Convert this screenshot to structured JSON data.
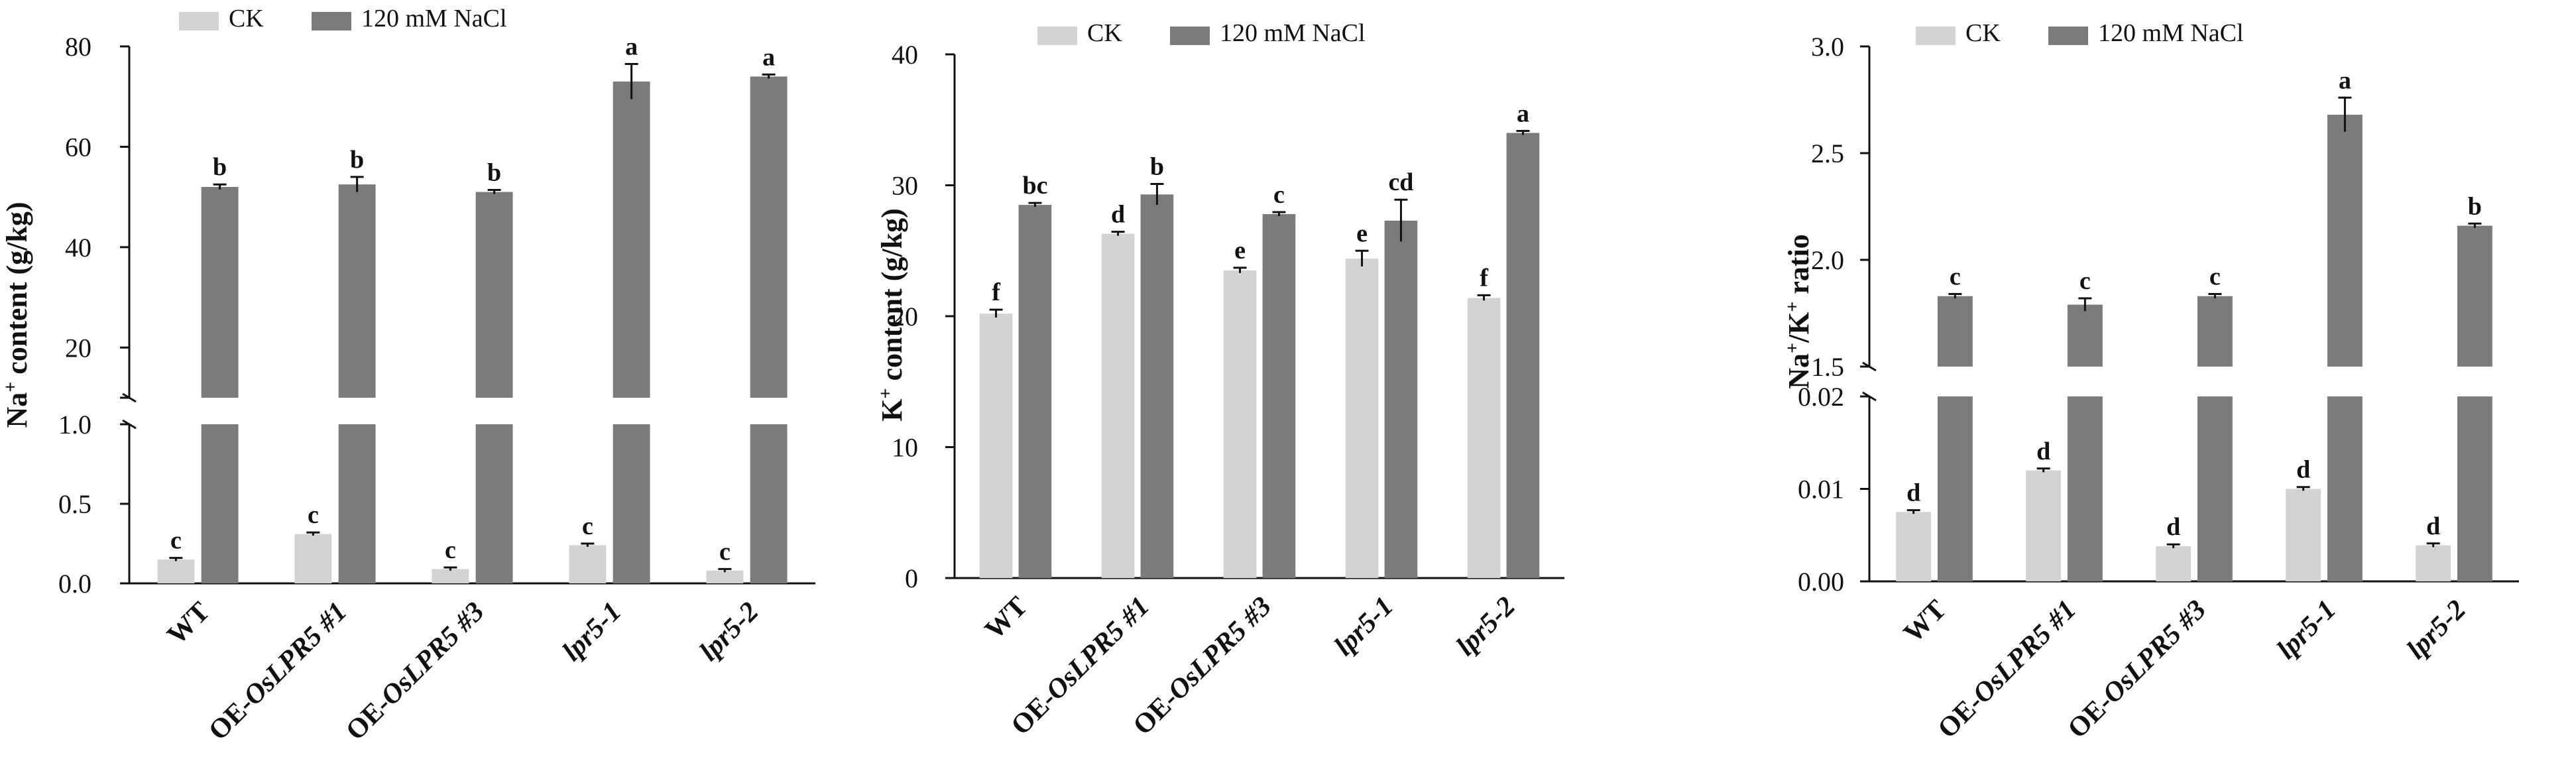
{
  "figure": {
    "categories": [
      {
        "pre": "WT",
        "it": ""
      },
      {
        "pre": "OE-",
        "it": "OsLPR5 #1"
      },
      {
        "pre": "OE-",
        "it": "OsLPR5 #3"
      },
      {
        "pre": "",
        "it": "lpr5-1"
      },
      {
        "pre": "",
        "it": "lpr5-2"
      }
    ],
    "legend": {
      "ck": "CK",
      "nacl": "120 mM NaCl"
    },
    "colors": {
      "ck": "#d3d3d3",
      "nacl": "#7b7b7b",
      "axis": "#111111",
      "text": "#111111"
    }
  },
  "chart_data": [
    {
      "type": "bar",
      "title": "",
      "xlabel": "",
      "ylabel": "Na⁺ content (g/kg)",
      "ylabel_parts": {
        "a": "Na",
        "sup": "+",
        "b": " content (g/kg)"
      },
      "categories": [
        "WT",
        "OE-OsLPR5 #1",
        "OE-OsLPR5 #3",
        "lpr5-1",
        "lpr5-2"
      ],
      "broken_axis": {
        "lower": [
          0,
          1.0
        ],
        "upper": [
          10,
          80
        ]
      },
      "yticks_lower": [
        "0.0",
        "0.5",
        "1.0"
      ],
      "yticks_upper": [
        "20",
        "40",
        "60",
        "80"
      ],
      "series": [
        {
          "name": "CK",
          "values": [
            0.15,
            0.31,
            0.09,
            0.24,
            0.08
          ],
          "errors": [
            0.01,
            0.01,
            0.01,
            0.01,
            0.01
          ],
          "labels": [
            "c",
            "c",
            "c",
            "c",
            "c"
          ]
        },
        {
          "name": "120 mM NaCl",
          "values": [
            52,
            52.5,
            51,
            73,
            74
          ],
          "errors": [
            0.5,
            1.5,
            0.4,
            3.5,
            0.4
          ],
          "labels": [
            "b",
            "b",
            "b",
            "a",
            "a"
          ]
        }
      ]
    },
    {
      "type": "bar",
      "title": "",
      "xlabel": "",
      "ylabel": "K⁺ content (g/kg)",
      "ylabel_parts": {
        "a": "K",
        "sup": "+",
        "b": " content (g/kg)"
      },
      "categories": [
        "WT",
        "OE-OsLPR5 #1",
        "OE-OsLPR5 #3",
        "lpr5-1",
        "lpr5-2"
      ],
      "ylim": [
        0,
        40
      ],
      "yticks": [
        "0",
        "10",
        "20",
        "30",
        "40"
      ],
      "series": [
        {
          "name": "CK",
          "values": [
            20.2,
            26.3,
            23.5,
            24.4,
            21.4
          ],
          "errors": [
            0.3,
            0.15,
            0.2,
            0.6,
            0.2
          ],
          "labels": [
            "f",
            "d",
            "e",
            "e",
            "f"
          ]
        },
        {
          "name": "120 mM NaCl",
          "values": [
            28.5,
            29.3,
            27.8,
            27.3,
            34
          ],
          "errors": [
            0.15,
            0.8,
            0.15,
            1.6,
            0.15
          ],
          "labels": [
            "bc",
            "b",
            "c",
            "cd",
            "a"
          ]
        }
      ]
    },
    {
      "type": "bar",
      "title": "",
      "xlabel": "",
      "ylabel": "Na⁺/K⁺ ratio",
      "ylabel_parts": {
        "a": "Na",
        "sup": "+",
        "b": "/K",
        "sup2": "+",
        "c": " ratio"
      },
      "categories": [
        "WT",
        "OE-OsLPR5 #1",
        "OE-OsLPR5 #3",
        "lpr5-1",
        "lpr5-2"
      ],
      "broken_axis": {
        "lower": [
          0,
          0.02
        ],
        "upper": [
          1.5,
          3.0
        ]
      },
      "yticks_lower": [
        "0.00",
        "0.01",
        "0.02"
      ],
      "yticks_upper": [
        "1.5",
        "2.0",
        "2.5",
        "3.0"
      ],
      "series": [
        {
          "name": "CK",
          "values": [
            0.0075,
            0.012,
            0.0038,
            0.01,
            0.0039
          ],
          "errors": [
            0.0002,
            0.0002,
            0.0002,
            0.0002,
            0.0002
          ],
          "labels": [
            "d",
            "d",
            "d",
            "d",
            "d"
          ]
        },
        {
          "name": "120 mM NaCl",
          "values": [
            1.83,
            1.79,
            1.83,
            2.68,
            2.16
          ],
          "errors": [
            0.01,
            0.03,
            0.01,
            0.08,
            0.01
          ],
          "labels": [
            "c",
            "c",
            "c",
            "a",
            "b"
          ]
        }
      ]
    }
  ]
}
